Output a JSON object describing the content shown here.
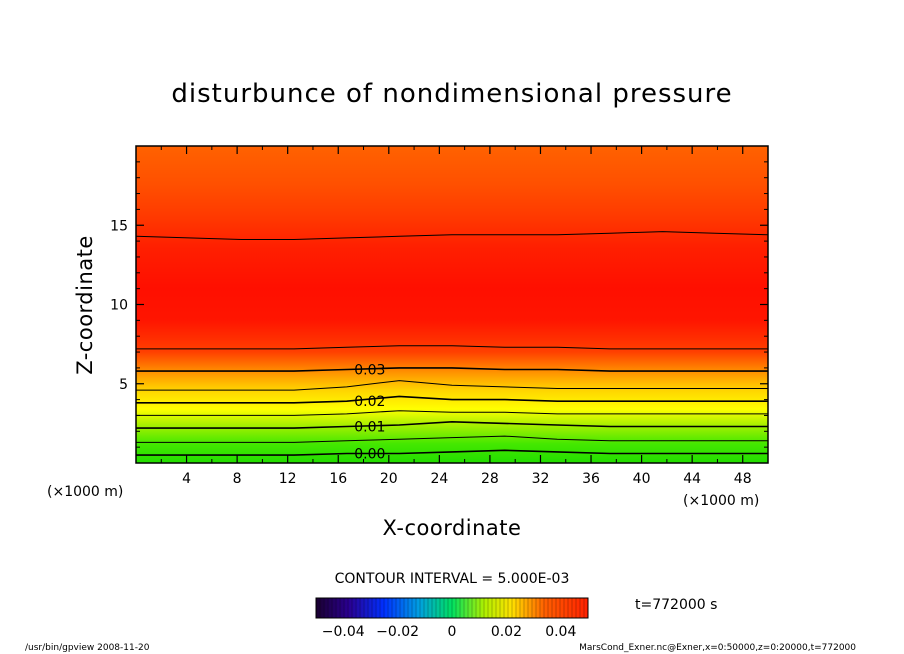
{
  "chart_data": {
    "type": "contour",
    "title": "disturbunce of nondimensional pressure",
    "xlabel": "X-coordinate",
    "ylabel": "Z-coordinate",
    "x_unit": "(×1000 m)",
    "y_unit": "(×1000 m)",
    "xlim": [
      0,
      50
    ],
    "ylim": [
      0,
      20
    ],
    "x_ticks": [
      4,
      8,
      12,
      16,
      20,
      24,
      28,
      32,
      36,
      40,
      44,
      48
    ],
    "y_ticks": [
      5,
      10,
      15
    ],
    "contour_interval": "CONTOUR INTERVAL = 5.000E-03",
    "contour_levels": [
      {
        "value": 0.0,
        "label": "0.00",
        "z": [
          0.5,
          0.5,
          0.5,
          0.5,
          0.6,
          0.6,
          0.7,
          0.8,
          0.7,
          0.6,
          0.6,
          0.6,
          0.6
        ]
      },
      {
        "value": 0.005,
        "label": "",
        "z": [
          1.3,
          1.3,
          1.3,
          1.3,
          1.4,
          1.5,
          1.6,
          1.7,
          1.5,
          1.4,
          1.4,
          1.4,
          1.4
        ]
      },
      {
        "value": 0.01,
        "label": "0.01",
        "z": [
          2.2,
          2.2,
          2.2,
          2.2,
          2.3,
          2.4,
          2.6,
          2.5,
          2.4,
          2.3,
          2.3,
          2.3,
          2.3
        ]
      },
      {
        "value": 0.015,
        "label": "",
        "z": [
          3.0,
          3.0,
          3.0,
          3.0,
          3.1,
          3.3,
          3.2,
          3.2,
          3.1,
          3.1,
          3.1,
          3.1,
          3.1
        ]
      },
      {
        "value": 0.02,
        "label": "0.02",
        "z": [
          3.8,
          3.8,
          3.8,
          3.8,
          3.9,
          4.2,
          4.0,
          4.0,
          3.9,
          3.9,
          3.9,
          3.9,
          3.9
        ]
      },
      {
        "value": 0.025,
        "label": "",
        "z": [
          4.6,
          4.6,
          4.6,
          4.6,
          4.8,
          5.2,
          4.9,
          4.8,
          4.7,
          4.7,
          4.7,
          4.7,
          4.7
        ]
      },
      {
        "value": 0.03,
        "label": "0.03",
        "z": [
          5.8,
          5.8,
          5.8,
          5.8,
          5.9,
          6.0,
          6.0,
          5.9,
          5.9,
          5.8,
          5.8,
          5.8,
          5.8
        ]
      },
      {
        "value": 0.035,
        "label": "",
        "z": [
          7.2,
          7.2,
          7.2,
          7.2,
          7.3,
          7.4,
          7.4,
          7.3,
          7.3,
          7.2,
          7.2,
          7.2,
          7.2
        ]
      },
      {
        "value": 0.035,
        "label": "",
        "z": [
          14.3,
          14.2,
          14.1,
          14.1,
          14.2,
          14.3,
          14.4,
          14.4,
          14.4,
          14.5,
          14.6,
          14.5,
          14.4
        ]
      }
    ],
    "colorbar": {
      "ticks": [
        "−0.04",
        "−0.02",
        "0",
        "0.02",
        "0.04"
      ],
      "tick_values": [
        -0.04,
        -0.02,
        0,
        0.02,
        0.04
      ],
      "range": [
        -0.05,
        0.05
      ]
    },
    "time_label": "t=772000 s",
    "footer_left": "/usr/bin/gpview   2008-11-20",
    "footer_right": "MarsCond_Exner.nc@Exner,x=0:50000,z=0:20000,t=772000"
  }
}
